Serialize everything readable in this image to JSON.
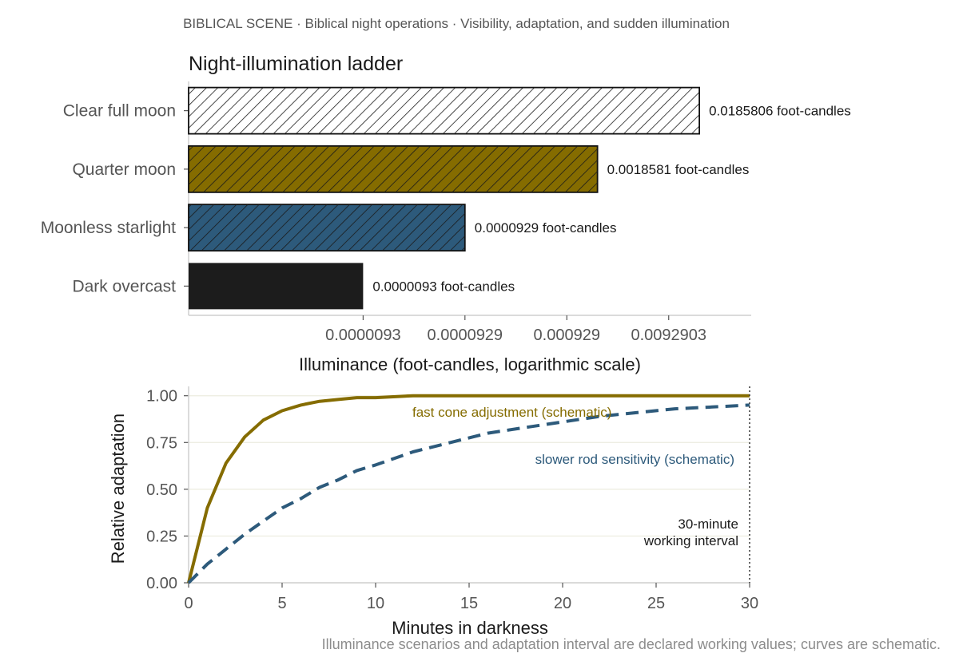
{
  "suptitle": "BIBLICAL SCENE · Biblical night operations · Visibility, adaptation, and sudden illumination",
  "footnote": "Illuminance scenarios and adaptation interval are declared working values; curves are schematic.",
  "colors": {
    "gold": "#856c00",
    "steel": "#2d5a7b",
    "black": "#1c1c1c",
    "white": "#ffffff",
    "axis": "#cfcfcf",
    "grid": "#ececdf"
  },
  "chart_data": [
    {
      "type": "bar",
      "orientation": "horizontal",
      "title": "Night-illumination ladder",
      "xlabel": "Illuminance (foot-candles, logarithmic scale)",
      "ylabel": "",
      "xscale": "log",
      "xlim": [
        1.8e-07,
        0.06
      ],
      "categories": [
        "Clear full moon",
        "Quarter moon",
        "Moonless starlight",
        "Dark overcast"
      ],
      "values": [
        0.0185806,
        0.0018581,
        9.29e-05,
        9.3e-06
      ],
      "value_labels": [
        "0.0185806 foot-candles",
        "0.0018581 foot-candles",
        "0.0000929 foot-candles",
        "0.0000093 foot-candles"
      ],
      "bar_fills": [
        "#ffffff",
        "#856c00",
        "#2d5a7b",
        "#1c1c1c"
      ],
      "bar_hatched": [
        true,
        true,
        true,
        false
      ],
      "xticks": [
        9.3e-06,
        9.29e-05,
        0.000929,
        0.0092903
      ],
      "xtick_labels": [
        "0.0000093",
        "0.0000929",
        "0.000929",
        "0.0092903"
      ],
      "grid": false
    },
    {
      "type": "line",
      "title": "",
      "xlabel": "Minutes in darkness",
      "ylabel": "Relative adaptation",
      "xlim": [
        0,
        30
      ],
      "ylim": [
        0,
        1.05
      ],
      "xticks": [
        0,
        5,
        10,
        15,
        20,
        25,
        30
      ],
      "yticks": [
        0.0,
        0.25,
        0.5,
        0.75,
        1.0
      ],
      "ytick_labels": [
        "0.00",
        "0.25",
        "0.50",
        "0.75",
        "1.00"
      ],
      "grid": "horizontal",
      "x": [
        0,
        1,
        2,
        3,
        4,
        5,
        6,
        7,
        8,
        9,
        10,
        12,
        14,
        16,
        18,
        20,
        22,
        24,
        26,
        28,
        30
      ],
      "series": [
        {
          "name": "fast cone adjustment (schematic)",
          "style": "solid",
          "color": "#856c00",
          "values": [
            0.0,
            0.4,
            0.64,
            0.78,
            0.87,
            0.92,
            0.95,
            0.97,
            0.98,
            0.99,
            0.99,
            1.0,
            1.0,
            1.0,
            1.0,
            1.0,
            1.0,
            1.0,
            1.0,
            1.0,
            1.0
          ]
        },
        {
          "name": "slower rod sensitivity (schematic)",
          "style": "dashed",
          "color": "#2d5a7b",
          "values": [
            0.0,
            0.1,
            0.18,
            0.26,
            0.33,
            0.4,
            0.45,
            0.51,
            0.55,
            0.6,
            0.63,
            0.7,
            0.75,
            0.8,
            0.83,
            0.86,
            0.89,
            0.91,
            0.93,
            0.94,
            0.95
          ]
        }
      ],
      "vline": {
        "x": 30,
        "label_lines": [
          "30-minute",
          "working interval"
        ]
      }
    }
  ]
}
